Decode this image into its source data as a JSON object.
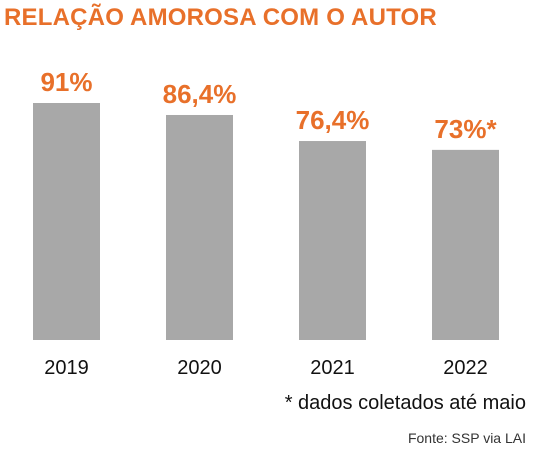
{
  "chart_data": {
    "type": "bar",
    "title": "RELAÇÃO AMOROSA COM O AUTOR",
    "categories": [
      "2019",
      "2020",
      "2021",
      "2022"
    ],
    "values": [
      91,
      86.4,
      76.4,
      73
    ],
    "value_labels": [
      "91%",
      "86,4%",
      "76,4%",
      "73%*"
    ],
    "ylim": [
      0,
      91
    ],
    "grid": false,
    "bar_color": "#a8a8a8",
    "label_color": "#e8702a"
  },
  "note": "* dados coletados até maio",
  "source": "Fonte:  SSP via LAI",
  "colors": {
    "accent": "#e8702a",
    "bar": "#a8a8a8",
    "text": "#111111"
  }
}
